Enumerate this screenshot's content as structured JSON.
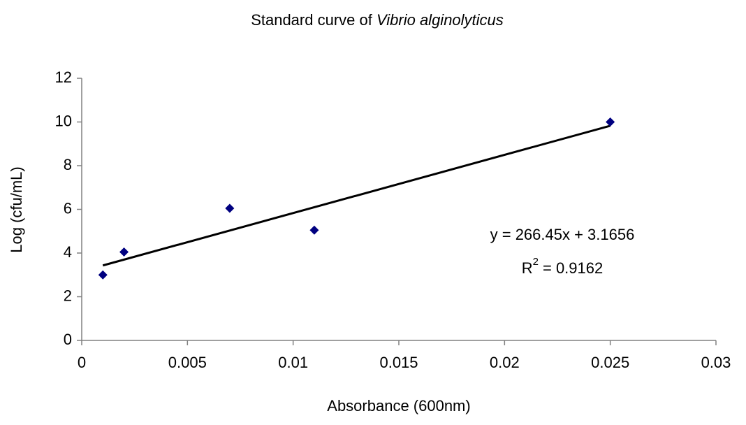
{
  "chart_data": {
    "type": "scatter",
    "title": "Standard curve of",
    "title_italic": "Vibrio alginolyticus",
    "xlabel": "Absorbance (600nm)",
    "ylabel": "Log (cfu/mL)",
    "x": [
      0.001,
      0.002,
      0.007,
      0.011,
      0.025
    ],
    "values": [
      3,
      4.05,
      6.05,
      5.05,
      10
    ],
    "color": "#000080",
    "xlim": [
      0,
      0.03
    ],
    "xticks": [
      0,
      0.005,
      0.01,
      0.015,
      0.02,
      0.025,
      0.03
    ],
    "ylim": [
      0,
      12
    ],
    "yticks": [
      0,
      2,
      4,
      6,
      8,
      10,
      12
    ],
    "grid": false,
    "trendline": {
      "slope": 266.45,
      "intercept": 3.1656,
      "color": "#000000",
      "equation": "y = 266.45x + 3.1656",
      "r2_symbol": "R",
      "r2_exponent": "2",
      "r2_text": "= 0.9162"
    }
  }
}
